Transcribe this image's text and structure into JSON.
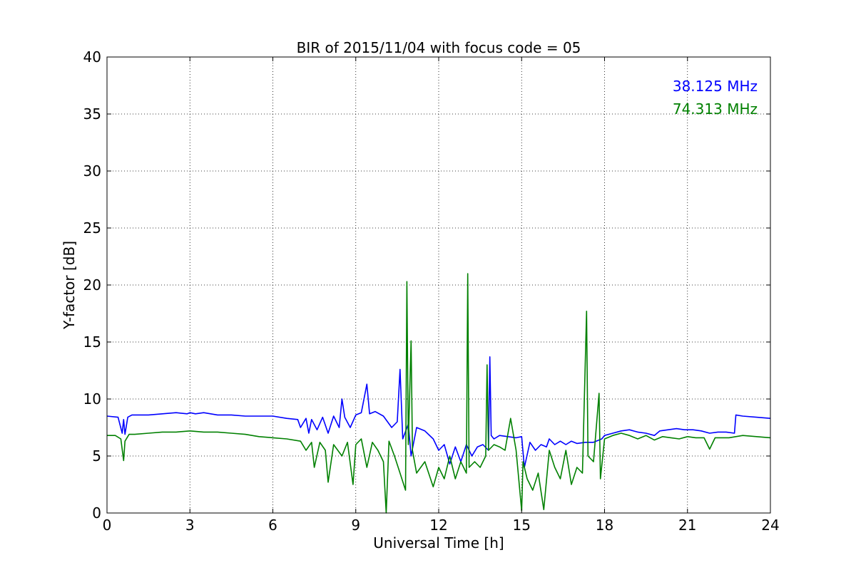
{
  "chart_data": {
    "type": "line",
    "title": "BIR of 2015/11/04 with focus code = 05",
    "xlabel": "Universal Time [h]",
    "ylabel": "Y-factor [dB]",
    "xlim": [
      0,
      24
    ],
    "ylim": [
      0,
      40
    ],
    "xticks": [
      0,
      3,
      6,
      9,
      12,
      15,
      18,
      21,
      24
    ],
    "yticks": [
      0,
      5,
      10,
      15,
      20,
      25,
      30,
      35,
      40
    ],
    "xtick_labels": [
      "0",
      "3",
      "6",
      "9",
      "12",
      "15",
      "18",
      "21",
      "24"
    ],
    "ytick_labels": [
      "0",
      "5",
      "10",
      "15",
      "20",
      "25",
      "30",
      "35",
      "40"
    ],
    "grid": true,
    "legend_position": "top-right",
    "series": [
      {
        "name": "38.125 MHz",
        "color": "#0000ff",
        "x": [
          0,
          0.4,
          0.55,
          0.6,
          0.65,
          0.75,
          0.9,
          1.5,
          2.0,
          2.5,
          2.9,
          3.0,
          3.2,
          3.5,
          4.0,
          4.5,
          5.0,
          5.5,
          6.0,
          6.5,
          6.9,
          7.0,
          7.2,
          7.3,
          7.4,
          7.6,
          7.8,
          8.0,
          8.2,
          8.4,
          8.5,
          8.6,
          8.8,
          9.0,
          9.2,
          9.4,
          9.5,
          9.7,
          10.0,
          10.3,
          10.5,
          10.6,
          10.7,
          10.9,
          11.0,
          11.2,
          11.5,
          11.8,
          12.0,
          12.2,
          12.4,
          12.6,
          12.8,
          13.0,
          13.2,
          13.4,
          13.6,
          13.8,
          13.85,
          13.9,
          14.0,
          14.2,
          14.5,
          14.8,
          15.0,
          15.1,
          15.3,
          15.5,
          15.7,
          15.9,
          16.0,
          16.2,
          16.4,
          16.6,
          16.8,
          17.0,
          17.3,
          17.6,
          17.9,
          18.0,
          18.3,
          18.6,
          18.9,
          19.2,
          19.5,
          19.8,
          20.0,
          20.3,
          20.6,
          20.9,
          21.2,
          21.5,
          21.8,
          22.1,
          22.4,
          22.7,
          22.75,
          23.0,
          23.5,
          24.0
        ],
        "y": [
          8.5,
          8.4,
          7.0,
          8.2,
          6.9,
          8.4,
          8.6,
          8.6,
          8.7,
          8.8,
          8.7,
          8.8,
          8.7,
          8.8,
          8.6,
          8.6,
          8.5,
          8.5,
          8.5,
          8.3,
          8.2,
          7.5,
          8.3,
          7.0,
          8.2,
          7.3,
          8.4,
          7.0,
          8.5,
          7.5,
          10.0,
          8.4,
          7.5,
          8.6,
          8.8,
          11.3,
          8.7,
          8.9,
          8.5,
          7.5,
          8.0,
          12.6,
          6.5,
          7.8,
          5.0,
          7.5,
          7.2,
          6.5,
          5.5,
          6.0,
          4.3,
          5.8,
          4.5,
          6.0,
          5.0,
          5.8,
          6.0,
          5.5,
          13.7,
          6.8,
          6.5,
          6.8,
          6.7,
          6.6,
          6.7,
          4.0,
          6.2,
          5.5,
          6.0,
          5.8,
          6.5,
          6.0,
          6.3,
          6.0,
          6.3,
          6.1,
          6.2,
          6.2,
          6.5,
          6.8,
          7.0,
          7.2,
          7.3,
          7.1,
          7.0,
          6.8,
          7.2,
          7.3,
          7.4,
          7.3,
          7.3,
          7.2,
          7.0,
          7.1,
          7.1,
          7.0,
          8.6,
          8.5,
          8.4,
          8.3
        ]
      },
      {
        "name": "74.313 MHz",
        "color": "#008000",
        "x": [
          0,
          0.3,
          0.5,
          0.6,
          0.65,
          0.8,
          1.0,
          1.5,
          2.0,
          2.5,
          3.0,
          3.5,
          4.0,
          4.5,
          5.0,
          5.5,
          6.0,
          6.5,
          7.0,
          7.2,
          7.4,
          7.5,
          7.7,
          7.9,
          8.0,
          8.2,
          8.5,
          8.7,
          8.9,
          9.0,
          9.2,
          9.4,
          9.6,
          9.8,
          10.0,
          10.1,
          10.2,
          10.4,
          10.6,
          10.8,
          10.85,
          10.9,
          11.0,
          11.05,
          11.2,
          11.5,
          11.8,
          12.0,
          12.2,
          12.4,
          12.6,
          12.8,
          13.0,
          13.05,
          13.1,
          13.3,
          13.5,
          13.7,
          13.75,
          13.8,
          14.0,
          14.2,
          14.4,
          14.6,
          14.8,
          15.0,
          15.05,
          15.2,
          15.4,
          15.6,
          15.8,
          16.0,
          16.2,
          16.4,
          16.6,
          16.8,
          17.0,
          17.2,
          17.35,
          17.4,
          17.6,
          17.8,
          17.85,
          18.0,
          18.3,
          18.6,
          18.9,
          19.2,
          19.5,
          19.8,
          20.1,
          20.4,
          20.7,
          21.0,
          21.3,
          21.6,
          21.8,
          22.0,
          22.5,
          23.0,
          23.5,
          24.0
        ],
        "y": [
          6.8,
          6.8,
          6.5,
          4.6,
          6.3,
          6.9,
          6.9,
          7.0,
          7.1,
          7.1,
          7.2,
          7.1,
          7.1,
          7.0,
          6.9,
          6.7,
          6.6,
          6.5,
          6.3,
          5.5,
          6.2,
          4.0,
          6.2,
          5.5,
          2.7,
          6.0,
          5.0,
          6.2,
          2.5,
          6.0,
          6.5,
          4.0,
          6.2,
          5.5,
          4.5,
          0.0,
          6.3,
          5.0,
          3.5,
          2.0,
          20.3,
          6.0,
          15.1,
          5.5,
          3.5,
          4.5,
          2.3,
          4.0,
          3.0,
          5.0,
          3.0,
          4.5,
          3.5,
          21.0,
          4.0,
          4.5,
          4.0,
          5.0,
          13.0,
          5.5,
          6.0,
          5.8,
          5.5,
          8.3,
          5.5,
          0.2,
          4.5,
          3.0,
          2.0,
          3.5,
          0.3,
          5.5,
          4.0,
          3.0,
          5.5,
          2.5,
          4.0,
          3.5,
          17.7,
          5.0,
          4.5,
          10.5,
          3.0,
          6.5,
          6.8,
          7.0,
          6.8,
          6.5,
          6.8,
          6.4,
          6.7,
          6.6,
          6.5,
          6.7,
          6.6,
          6.6,
          5.6,
          6.6,
          6.6,
          6.8,
          6.7,
          6.6
        ]
      }
    ]
  }
}
